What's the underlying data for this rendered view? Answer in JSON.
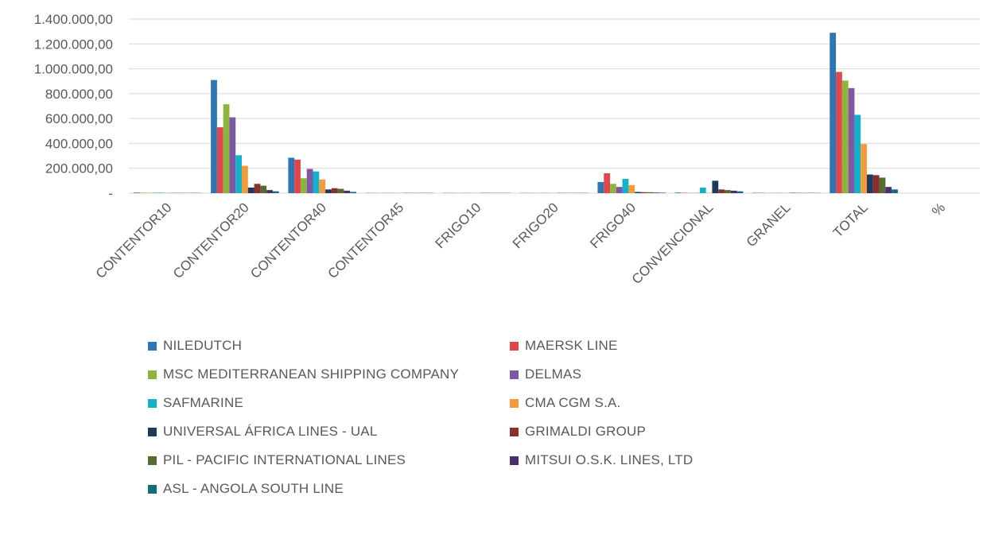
{
  "chart_data": {
    "type": "bar",
    "categories": [
      "CONTENTOR10",
      "CONTENTOR20",
      "CONTENTOR40",
      "CONTENTOR45",
      "FRIGO10",
      "FRIGO20",
      "FRIGO40",
      "CONVENCIONAL",
      "GRANEL",
      "TOTAL",
      "%"
    ],
    "ylim": [
      0,
      1400000
    ],
    "yticks": [
      0,
      200000,
      400000,
      600000,
      800000,
      1000000,
      1200000,
      1400000
    ],
    "ytick_labels": [
      "-",
      "200.000,00",
      "400.000,00",
      "600.000,00",
      "800.000,00",
      "1.000.000,00",
      "1.200.000,00",
      "1.400.000,00"
    ],
    "grid": true,
    "legend_position": "bottom",
    "series": [
      {
        "name": "NILEDUTCH",
        "color": "#2E75B6",
        "values": [
          5000,
          910000,
          285000,
          2000,
          2000,
          2000,
          90000,
          5000,
          3000,
          1290000,
          1
        ]
      },
      {
        "name": "MAERSK LINE",
        "color": "#E0474C",
        "values": [
          3000,
          530000,
          270000,
          2000,
          2000,
          2000,
          160000,
          3000,
          3000,
          975000,
          1
        ]
      },
      {
        "name": "MSC MEDITERRANEAN SHIPPING COMPANY",
        "color": "#8DB53C",
        "values": [
          3000,
          715000,
          120000,
          2000,
          2000,
          2000,
          75000,
          3000,
          2000,
          905000,
          1
        ]
      },
      {
        "name": "DELMAS",
        "color": "#7E57A5",
        "values": [
          3000,
          610000,
          195000,
          2000,
          2000,
          2000,
          50000,
          2000,
          2000,
          845000,
          1
        ]
      },
      {
        "name": "SAFMARINE",
        "color": "#12B3CA",
        "values": [
          4000,
          305000,
          175000,
          2000,
          2000,
          2000,
          115000,
          45000,
          2000,
          630000,
          1
        ]
      },
      {
        "name": "CMA CGM S.A.",
        "color": "#F59A3B",
        "values": [
          3000,
          220000,
          110000,
          2000,
          2000,
          2000,
          65000,
          3000,
          2000,
          395000,
          1
        ]
      },
      {
        "name": "UNIVERSAL ÁFRICA LINES - UAL",
        "color": "#1E3A5F",
        "values": [
          2000,
          45000,
          30000,
          2000,
          2000,
          2000,
          10000,
          100000,
          3000,
          150000,
          1
        ]
      },
      {
        "name": "GRIMALDI GROUP",
        "color": "#8B2E2E",
        "values": [
          2000,
          75000,
          40000,
          2000,
          2000,
          2000,
          8000,
          30000,
          2000,
          145000,
          1
        ]
      },
      {
        "name": "PIL - PACIFIC INTERNATIONAL LINES",
        "color": "#556B2F",
        "values": [
          2000,
          60000,
          35000,
          2000,
          2000,
          2000,
          8000,
          25000,
          2000,
          125000,
          1
        ]
      },
      {
        "name": "MITSUI O.S.K. LINES, LTD",
        "color": "#4B2E6B",
        "values": [
          2000,
          25000,
          20000,
          2000,
          2000,
          2000,
          5000,
          20000,
          2000,
          50000,
          1
        ]
      },
      {
        "name": "ASL - ANGOLA SOUTH LINE",
        "color": "#0F6E7A",
        "values": [
          2000,
          15000,
          10000,
          2000,
          2000,
          2000,
          4000,
          15000,
          2000,
          30000,
          1
        ]
      }
    ]
  }
}
